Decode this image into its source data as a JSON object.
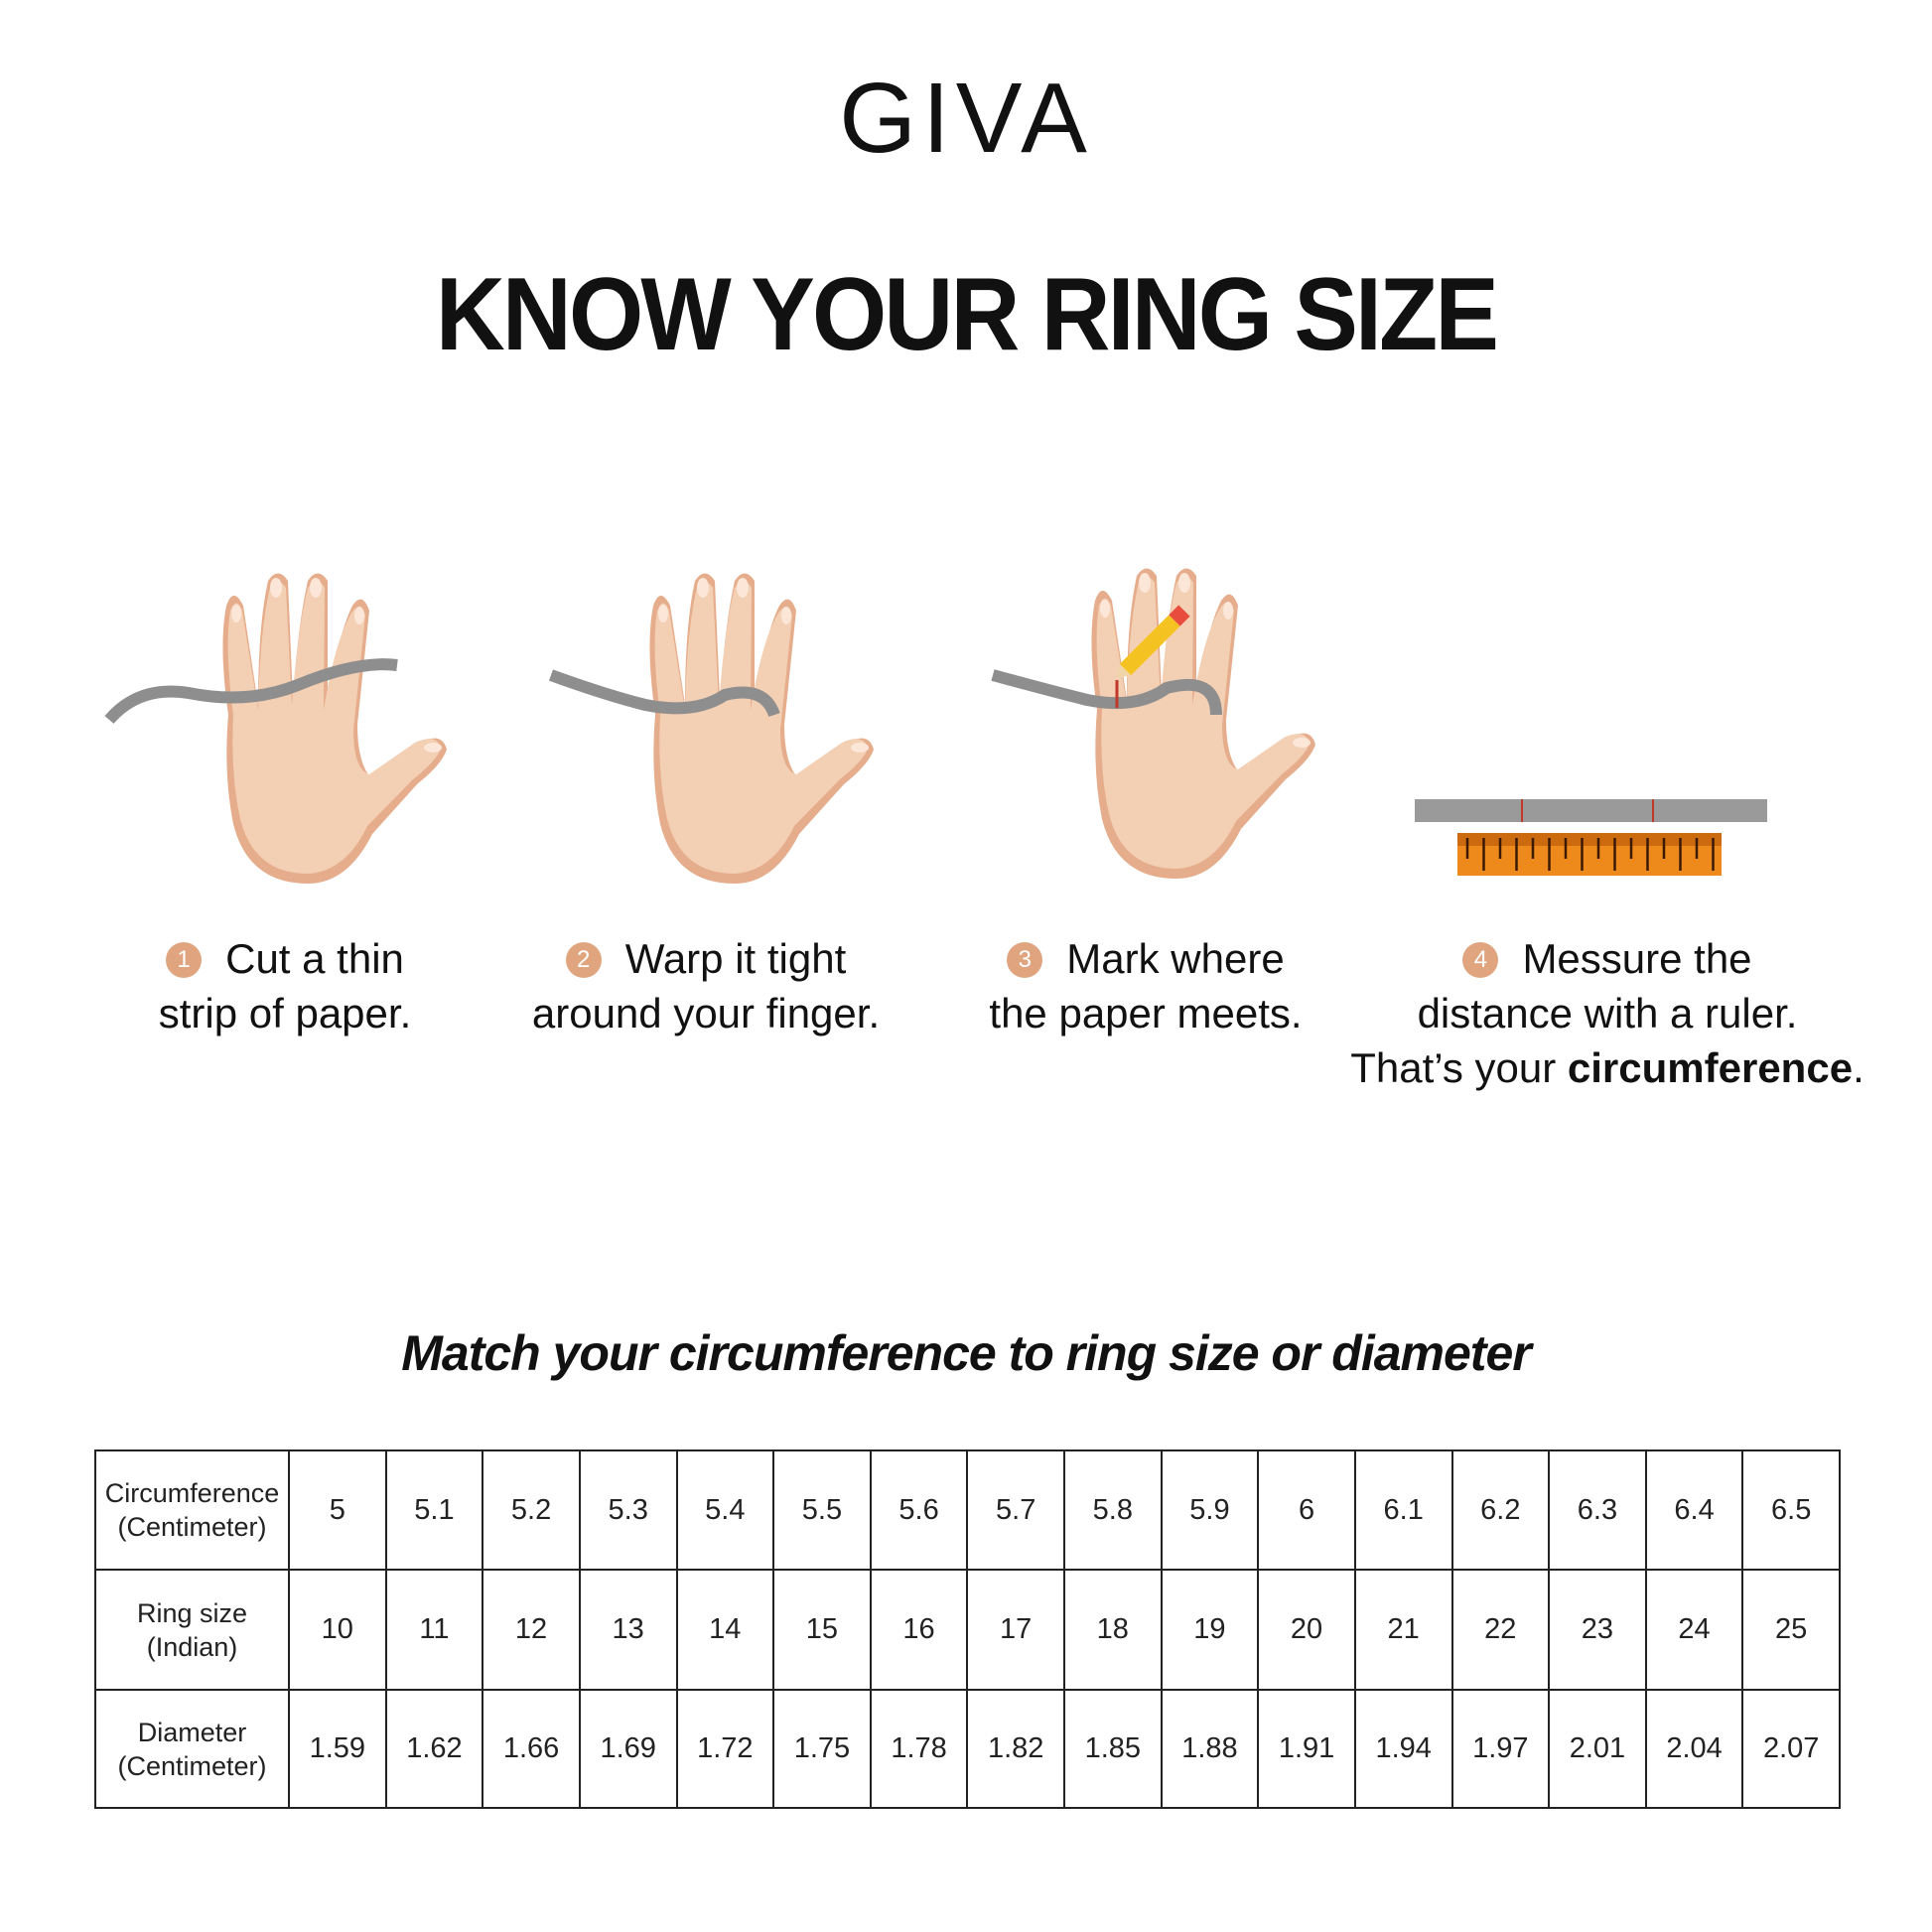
{
  "brand": {
    "logo": "GIVA"
  },
  "title": "KNOW YOUR RING SIZE",
  "steps": [
    {
      "number": "1",
      "line1": "Cut a thin",
      "line2": "strip of paper."
    },
    {
      "number": "2",
      "line1": "Warp it tight",
      "line2": "around your finger."
    },
    {
      "number": "3",
      "line1": "Mark where",
      "line2": "the paper meets."
    },
    {
      "number": "4",
      "line1": "Messure the",
      "line2": "distance with a ruler.",
      "line3_prefix": "That’s your ",
      "line3_bold": "circumference",
      "line3_suffix": "."
    }
  ],
  "subtitle": "Match your circumference to ring size or diameter",
  "table": {
    "rows": [
      {
        "label1": "Circumference",
        "label2": "(Centimeter)",
        "values": [
          "5",
          "5.1",
          "5.2",
          "5.3",
          "5.4",
          "5.5",
          "5.6",
          "5.7",
          "5.8",
          "5.9",
          "6",
          "6.1",
          "6.2",
          "6.3",
          "6.4",
          "6.5"
        ]
      },
      {
        "label1": "Ring size",
        "label2": "(Indian)",
        "values": [
          "10",
          "11",
          "12",
          "13",
          "14",
          "15",
          "16",
          "17",
          "18",
          "19",
          "20",
          "21",
          "22",
          "23",
          "24",
          "25"
        ]
      },
      {
        "label1": "Diameter",
        "label2": "(Centimeter)",
        "values": [
          "1.59",
          "1.62",
          "1.66",
          "1.69",
          "1.72",
          "1.75",
          "1.78",
          "1.82",
          "1.85",
          "1.88",
          "1.91",
          "1.94",
          "1.97",
          "2.01",
          "2.04",
          "2.07"
        ]
      }
    ]
  },
  "colors": {
    "skin": "#f3cfb4",
    "skin_shadow": "#e6ad8c",
    "paper_strip": "#9a9a9a",
    "ruler": "#ee8a1c",
    "step_badge": "#e0a57f"
  }
}
